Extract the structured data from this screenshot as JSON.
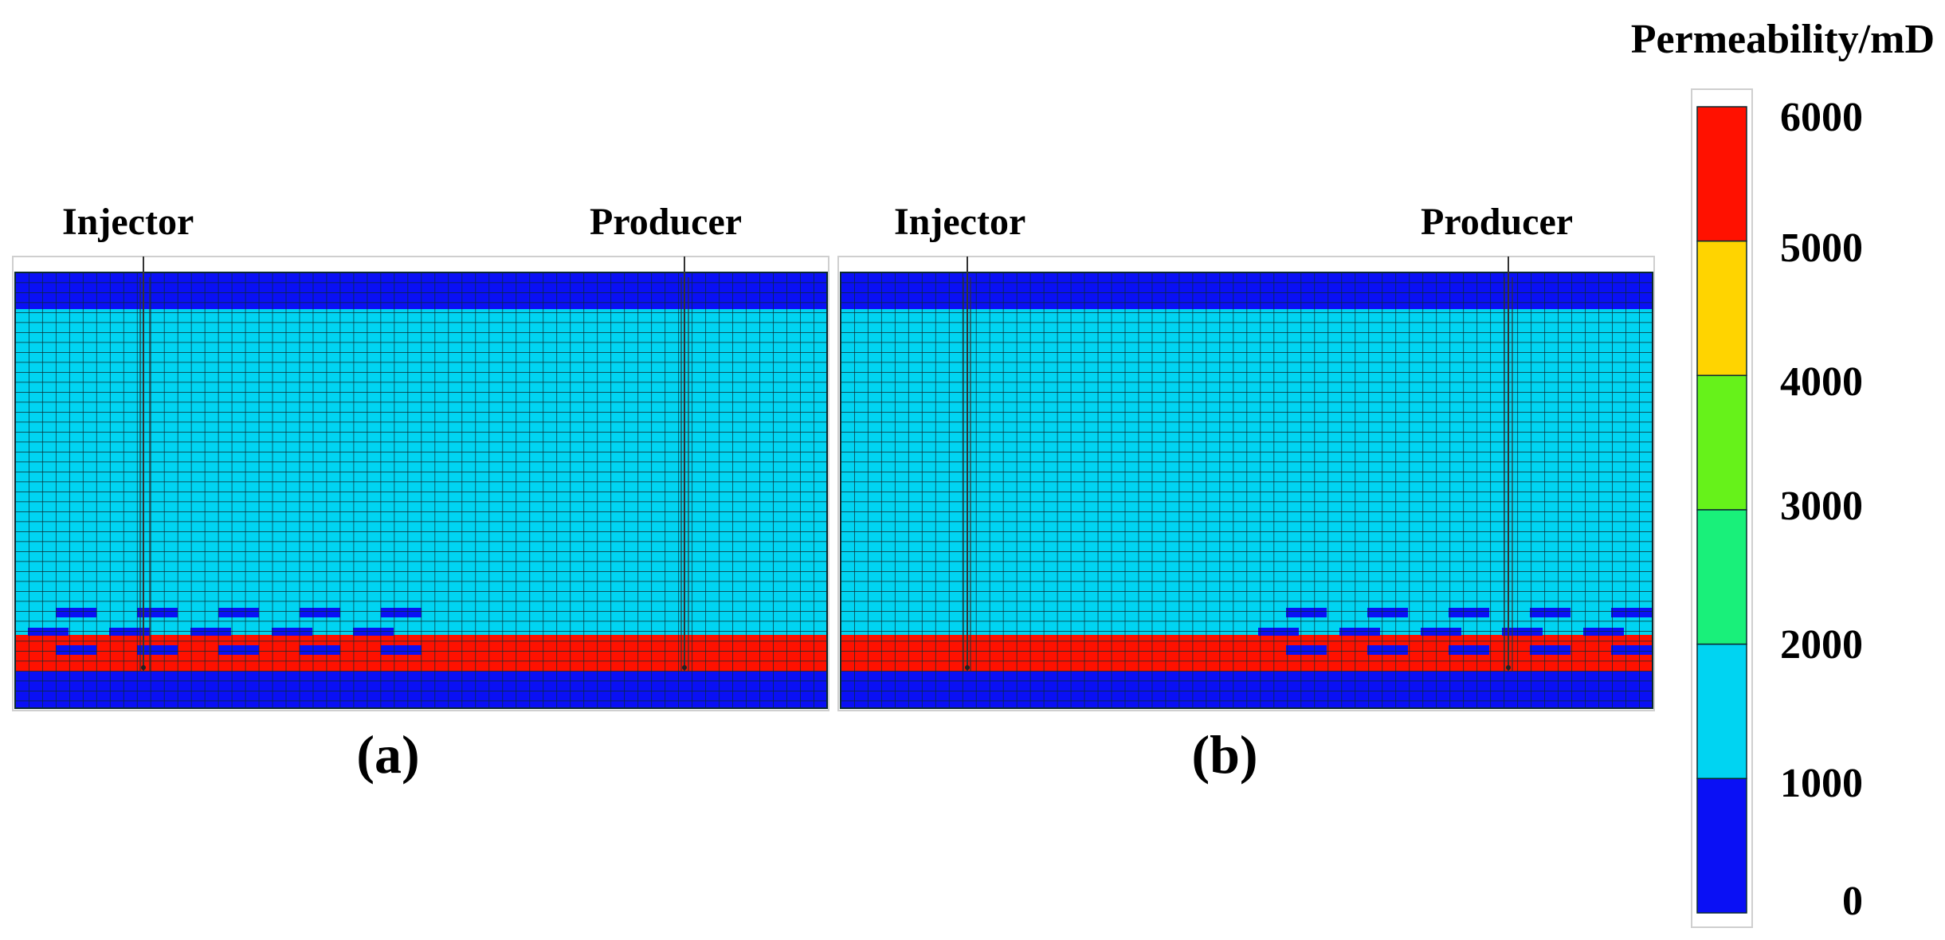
{
  "panels": [
    {
      "id": "a",
      "caption": "(a)",
      "injector_label": "Injector",
      "producer_label": "Producer",
      "baffle_position": "left"
    },
    {
      "id": "b",
      "caption": "(b)",
      "injector_label": "Injector",
      "producer_label": "Producer",
      "baffle_position": "right"
    }
  ],
  "grid": {
    "columns": 60,
    "rows": 32,
    "layers": [
      {
        "rows": 3,
        "permeability_band": "0-1000"
      },
      {
        "rows": 24,
        "permeability_band": "1000-2000"
      },
      {
        "rows": 3,
        "permeability_band": "5000-6000"
      },
      {
        "rows": 2,
        "permeability_band": "0-1000"
      }
    ]
  },
  "colorbar": {
    "title": "Permeability/mD",
    "ticks": [
      "6000",
      "5000",
      "4000",
      "3000",
      "2000",
      "1000",
      "0"
    ],
    "colors_top_to_bottom": [
      "#ff1100",
      "#ffd400",
      "#66f21a",
      "#19f07a",
      "#00d4f2",
      "#0a10f5"
    ]
  },
  "colors": {
    "low": "#0a10f5",
    "mid": "#00d4f2",
    "high": "#ff1100",
    "gridline": "#0a2a30",
    "well": "#333333"
  }
}
